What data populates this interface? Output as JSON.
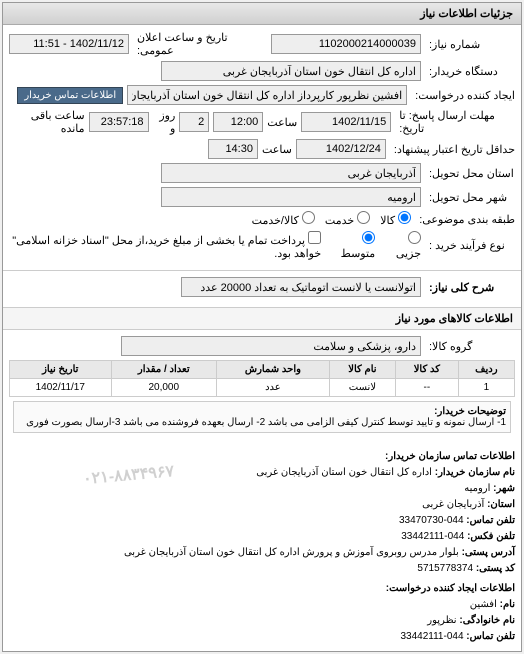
{
  "header": {
    "title": "جزئیات اطلاعات نیاز"
  },
  "form": {
    "need_number_label": "شماره نیاز:",
    "need_number": "1102000214000039",
    "announce_datetime_label": "تاریخ و ساعت اعلان عمومی:",
    "announce_datetime": "1402/11/12 - 11:51",
    "buyer_org_label": "دستگاه خریدار:",
    "buyer_org": "اداره کل انتقال خون استان آذربایجان غربی",
    "requester_label": "ایجاد کننده درخواست:",
    "requester": "افشین نظرپور کارپرداز اداره کل انتقال خون استان آذربایجان غربی",
    "contact_buyer_btn": "اطلاعات تماس خریدار",
    "deadline_label": "مهلت ارسال پاسخ: تا تاریخ:",
    "deadline_date": "1402/11/15",
    "deadline_time_label": "ساعت",
    "deadline_time": "12:00",
    "remain_day": "2",
    "remain_day_label": "روز و",
    "remain_time": "23:57:18",
    "remain_label": "ساعت باقی مانده",
    "validity_label": "حداقل تاریخ اعتبار پیشنهاد:",
    "validity_date": "1402/12/24",
    "validity_time_label": "ساعت",
    "validity_time": "14:30",
    "delivery_province_label": "استان محل تحویل:",
    "delivery_province": "آذربایجان غربی",
    "delivery_city_label": "شهر محل تحویل:",
    "delivery_city": "ارومیه",
    "category_label": "طبقه بندی موضوعی:",
    "cat_goods": "کالا",
    "cat_service": "خدمت",
    "cat_goods_service": "کالا/خدمت",
    "buy_type_label": "نوع فرآیند خرید :",
    "buy_small": "جزیی",
    "buy_medium": "متوسط",
    "buy_note": "پرداخت تمام یا بخشی از مبلغ خرید،از محل \"اسناد خزانه اسلامی\" خواهد بود.",
    "summary_label": "شرح کلی نیاز:",
    "summary": "اتولانست یا لانست اتوماتیک به تعداد 20000 عدد",
    "items_title": "اطلاعات کالاهای مورد نیاز",
    "group_label": "گروه کالا:",
    "group": "دارو، پزشکی و سلامت"
  },
  "table": {
    "columns": [
      "ردیف",
      "کد کالا",
      "نام کالا",
      "واحد شمارش",
      "تعداد / مقدار",
      "تاریخ نیاز"
    ],
    "rows": [
      [
        "1",
        "--",
        "لانست",
        "عدد",
        "20,000",
        "1402/11/17"
      ]
    ]
  },
  "buyer_desc": {
    "label": "توضیحات خریدار:",
    "text": "1- ارسال نمونه و تایید توسط کنترل کیفی الزامی می باشد 2- ارسال بعهده فروشنده می باشد 3-ارسال بصورت فوری"
  },
  "contact": {
    "section_title": "اطلاعات تماس سازمان خریدار:",
    "org_label": "نام سازمان خریدار:",
    "org": "اداره کل انتقال خون استان آذربایجان غربی",
    "city_label": "شهر:",
    "city": "ارومیه",
    "province_label": "استان:",
    "province": "آذربایجان غربی",
    "phone_label": "تلفن تماس:",
    "phone": "044-33470730",
    "fax_label": "تلفن فکس:",
    "fax": "044-33442111",
    "address_label": "آدرس پستی:",
    "address": "بلوار مدرس روبروی آموزش و پرورش اداره کل انتقال خون استان آذربایجان غربی",
    "postal_label": "کد پستی:",
    "postal": "5715778374",
    "requester_section": "اطلاعات ایجاد کننده درخواست:",
    "name_label": "نام:",
    "name": "افشین",
    "surname_label": "نام خانوادگی:",
    "surname": "نظرپور",
    "req_phone_label": "تلفن تماس:",
    "req_phone": "044-33442111",
    "watermark": "۰۲۱-۸۸۳۴۹۶۷"
  }
}
